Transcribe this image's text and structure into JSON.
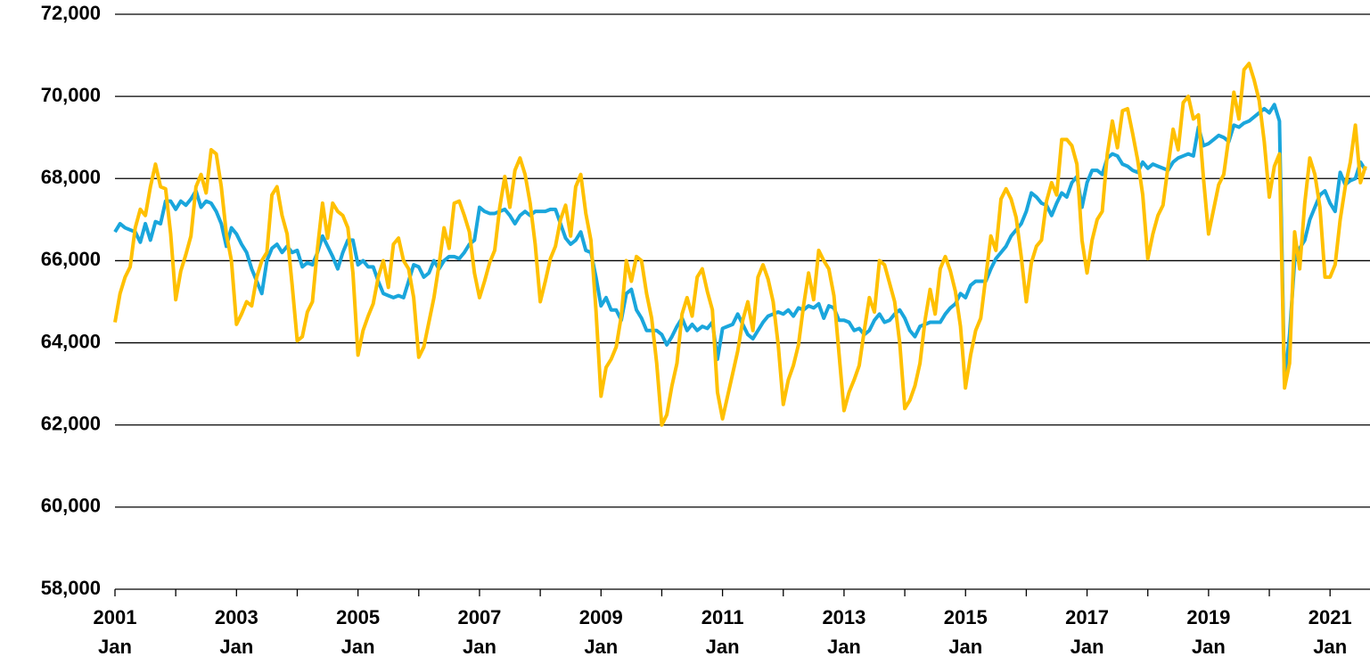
{
  "chart_data": {
    "type": "line",
    "x": [
      "2001-01",
      "2001-02",
      "2001-03",
      "2001-04",
      "2001-05",
      "2001-06",
      "2001-07",
      "2001-08",
      "2001-09",
      "2001-10",
      "2001-11",
      "2001-12",
      "2002-01",
      "2002-02",
      "2002-03",
      "2002-04",
      "2002-05",
      "2002-06",
      "2002-07",
      "2002-08",
      "2002-09",
      "2002-10",
      "2002-11",
      "2002-12",
      "2003-01",
      "2003-02",
      "2003-03",
      "2003-04",
      "2003-05",
      "2003-06",
      "2003-07",
      "2003-08",
      "2003-09",
      "2003-10",
      "2003-11",
      "2003-12",
      "2004-01",
      "2004-02",
      "2004-03",
      "2004-04",
      "2004-05",
      "2004-06",
      "2004-07",
      "2004-08",
      "2004-09",
      "2004-10",
      "2004-11",
      "2004-12",
      "2005-01",
      "2005-02",
      "2005-03",
      "2005-04",
      "2005-05",
      "2005-06",
      "2005-07",
      "2005-08",
      "2005-09",
      "2005-10",
      "2005-11",
      "2005-12",
      "2006-01",
      "2006-02",
      "2006-03",
      "2006-04",
      "2006-05",
      "2006-06",
      "2006-07",
      "2006-08",
      "2006-09",
      "2006-10",
      "2006-11",
      "2006-12",
      "2007-01",
      "2007-02",
      "2007-03",
      "2007-04",
      "2007-05",
      "2007-06",
      "2007-07",
      "2007-08",
      "2007-09",
      "2007-10",
      "2007-11",
      "2007-12",
      "2008-01",
      "2008-02",
      "2008-03",
      "2008-04",
      "2008-05",
      "2008-06",
      "2008-07",
      "2008-08",
      "2008-09",
      "2008-10",
      "2008-11",
      "2008-12",
      "2009-01",
      "2009-02",
      "2009-03",
      "2009-04",
      "2009-05",
      "2009-06",
      "2009-07",
      "2009-08",
      "2009-09",
      "2009-10",
      "2009-11",
      "2009-12",
      "2010-01",
      "2010-02",
      "2010-03",
      "2010-04",
      "2010-05",
      "2010-06",
      "2010-07",
      "2010-08",
      "2010-09",
      "2010-10",
      "2010-11",
      "2010-12",
      "2011-01",
      "2011-02",
      "2011-03",
      "2011-04",
      "2011-05",
      "2011-06",
      "2011-07",
      "2011-08",
      "2011-09",
      "2011-10",
      "2011-11",
      "2011-12",
      "2012-01",
      "2012-02",
      "2012-03",
      "2012-04",
      "2012-05",
      "2012-06",
      "2012-07",
      "2012-08",
      "2012-09",
      "2012-10",
      "2012-11",
      "2012-12",
      "2013-01",
      "2013-02",
      "2013-03",
      "2013-04",
      "2013-05",
      "2013-06",
      "2013-07",
      "2013-08",
      "2013-09",
      "2013-10",
      "2013-11",
      "2013-12",
      "2014-01",
      "2014-02",
      "2014-03",
      "2014-04",
      "2014-05",
      "2014-06",
      "2014-07",
      "2014-08",
      "2014-09",
      "2014-10",
      "2014-11",
      "2014-12",
      "2015-01",
      "2015-02",
      "2015-03",
      "2015-04",
      "2015-05",
      "2015-06",
      "2015-07",
      "2015-08",
      "2015-09",
      "2015-10",
      "2015-11",
      "2015-12",
      "2016-01",
      "2016-02",
      "2016-03",
      "2016-04",
      "2016-05",
      "2016-06",
      "2016-07",
      "2016-08",
      "2016-09",
      "2016-10",
      "2016-11",
      "2016-12",
      "2017-01",
      "2017-02",
      "2017-03",
      "2017-04",
      "2017-05",
      "2017-06",
      "2017-07",
      "2017-08",
      "2017-09",
      "2017-10",
      "2017-11",
      "2017-12",
      "2018-01",
      "2018-02",
      "2018-03",
      "2018-04",
      "2018-05",
      "2018-06",
      "2018-07",
      "2018-08",
      "2018-09",
      "2018-10",
      "2018-11",
      "2018-12",
      "2019-01",
      "2019-02",
      "2019-03",
      "2019-04",
      "2019-05",
      "2019-06",
      "2019-07",
      "2019-08",
      "2019-09",
      "2019-10",
      "2019-11",
      "2019-12",
      "2020-01",
      "2020-02",
      "2020-03",
      "2020-04",
      "2020-05",
      "2020-06",
      "2020-07",
      "2020-08",
      "2020-09",
      "2020-10",
      "2020-11",
      "2020-12",
      "2021-01",
      "2021-02",
      "2021-03",
      "2021-04",
      "2021-05",
      "2021-06",
      "2021-07",
      "2021-08"
    ],
    "series": [
      {
        "color": "#1aa6dc",
        "values": [
          66700,
          66900,
          66800,
          66750,
          66700,
          66450,
          66900,
          66500,
          66950,
          66900,
          67450,
          67450,
          67250,
          67450,
          67350,
          67500,
          67700,
          67300,
          67450,
          67400,
          67200,
          66900,
          66350,
          66800,
          66650,
          66400,
          66200,
          65800,
          65500,
          65200,
          66000,
          66300,
          66400,
          66200,
          66350,
          66200,
          66250,
          65850,
          65950,
          65900,
          66200,
          66600,
          66350,
          66100,
          65800,
          66200,
          66500,
          66500,
          65900,
          66000,
          65850,
          65850,
          65500,
          65200,
          65150,
          65100,
          65150,
          65100,
          65500,
          65900,
          65850,
          65600,
          65700,
          66000,
          65800,
          66000,
          66100,
          66100,
          66050,
          66200,
          66400,
          66500,
          67300,
          67200,
          67150,
          67150,
          67200,
          67250,
          67100,
          66900,
          67100,
          67200,
          67100,
          67200,
          67200,
          67200,
          67250,
          67250,
          66900,
          66550,
          66400,
          66500,
          66700,
          66250,
          66200,
          65600,
          64900,
          65100,
          64800,
          64800,
          64550,
          65200,
          65300,
          64800,
          64600,
          64300,
          64300,
          64300,
          64200,
          63950,
          64150,
          64400,
          64600,
          64300,
          64450,
          64300,
          64400,
          64350,
          64500,
          63600,
          64350,
          64400,
          64450,
          64700,
          64450,
          64200,
          64100,
          64300,
          64500,
          64650,
          64700,
          64750,
          64700,
          64800,
          64650,
          64850,
          64800,
          64900,
          64850,
          64950,
          64600,
          64900,
          64850,
          64550,
          64550,
          64500,
          64300,
          64350,
          64200,
          64300,
          64550,
          64700,
          64500,
          64550,
          64700,
          64800,
          64600,
          64300,
          64150,
          64400,
          64450,
          64500,
          64500,
          64500,
          64700,
          64850,
          64950,
          65200,
          65100,
          65400,
          65500,
          65500,
          65500,
          65800,
          66050,
          66200,
          66350,
          66600,
          66750,
          66900,
          67200,
          67650,
          67550,
          67400,
          67350,
          67100,
          67400,
          67650,
          67550,
          67900,
          68050,
          67300,
          67900,
          68200,
          68200,
          68100,
          68500,
          68600,
          68550,
          68350,
          68300,
          68200,
          68150,
          68400,
          68250,
          68350,
          68300,
          68250,
          68200,
          68400,
          68500,
          68550,
          68600,
          68550,
          69250,
          68800,
          68850,
          68950,
          69050,
          69000,
          68900,
          69300,
          69250,
          69350,
          69400,
          69500,
          69600,
          69700,
          69600,
          69800,
          69400,
          63000,
          64200,
          66000,
          66300,
          66500,
          67000,
          67300,
          67600,
          67700,
          67400,
          67200,
          68150,
          67850,
          67950,
          68000,
          68400,
          68200
        ]
      },
      {
        "color": "#ffc000",
        "values": [
          64500,
          65200,
          65600,
          65850,
          66800,
          67250,
          67100,
          67800,
          68350,
          67800,
          67750,
          66650,
          65050,
          65750,
          66150,
          66600,
          67800,
          68100,
          67650,
          68700,
          68600,
          67800,
          66650,
          66000,
          64450,
          64700,
          65000,
          64900,
          65600,
          66000,
          66200,
          67600,
          67800,
          67100,
          66650,
          65400,
          64050,
          64150,
          64750,
          65000,
          66300,
          67400,
          66550,
          67400,
          67200,
          67100,
          66800,
          65700,
          63700,
          64300,
          64650,
          64950,
          65600,
          66000,
          65350,
          66400,
          66550,
          66000,
          65800,
          65100,
          63650,
          63900,
          64500,
          65100,
          65900,
          66800,
          66300,
          67400,
          67450,
          67100,
          66700,
          65700,
          65100,
          65500,
          65950,
          66250,
          67300,
          68050,
          67300,
          68200,
          68500,
          68100,
          67400,
          66400,
          65000,
          65500,
          66050,
          66350,
          67000,
          67350,
          66600,
          67800,
          68100,
          67150,
          66500,
          64800,
          62700,
          63400,
          63600,
          63900,
          64650,
          66000,
          65500,
          66100,
          66000,
          65200,
          64600,
          63500,
          62000,
          62250,
          62950,
          63500,
          64700,
          65100,
          64650,
          65600,
          65800,
          65250,
          64800,
          62800,
          62150,
          62700,
          63250,
          63800,
          64550,
          65000,
          64300,
          65600,
          65900,
          65550,
          65000,
          63950,
          62500,
          63100,
          63450,
          63950,
          64900,
          65700,
          65050,
          66250,
          66000,
          65800,
          65150,
          63750,
          62350,
          62800,
          63100,
          63450,
          64300,
          65100,
          64750,
          66000,
          65900,
          65450,
          65000,
          64000,
          62400,
          62600,
          62950,
          63500,
          64550,
          65300,
          64700,
          65800,
          66100,
          65750,
          65250,
          64400,
          62900,
          63700,
          64300,
          64600,
          65600,
          66600,
          66250,
          67500,
          67750,
          67500,
          67050,
          66100,
          65000,
          65950,
          66350,
          66500,
          67450,
          67900,
          67600,
          68950,
          68950,
          68800,
          68350,
          66500,
          65700,
          66500,
          67000,
          67200,
          68600,
          69400,
          68750,
          69650,
          69700,
          69100,
          68450,
          67600,
          66050,
          66650,
          67100,
          67350,
          68300,
          69200,
          68700,
          69850,
          70000,
          69450,
          69550,
          68000,
          66650,
          67250,
          67850,
          68100,
          69000,
          70100,
          69450,
          70650,
          70800,
          70400,
          69900,
          68900,
          67550,
          68300,
          68600,
          62900,
          63500,
          66700,
          65800,
          67400,
          68500,
          68100,
          67300,
          65600,
          65600,
          65900,
          67000,
          67800,
          68400,
          69300,
          67900,
          68300
        ]
      }
    ],
    "ylim": [
      58000,
      72000
    ],
    "yticks": [
      {
        "value": 58000,
        "label": "58,000"
      },
      {
        "value": 60000,
        "label": "60,000"
      },
      {
        "value": 62000,
        "label": "62,000"
      },
      {
        "value": 64000,
        "label": "64,000"
      },
      {
        "value": 66000,
        "label": "66,000"
      },
      {
        "value": 68000,
        "label": "68,000"
      },
      {
        "value": 70000,
        "label": "70,000"
      },
      {
        "value": 72000,
        "label": "72,000"
      }
    ],
    "xticks": [
      {
        "value": "2001-01",
        "label": [
          "2001",
          "Jan"
        ]
      },
      {
        "value": "2003-01",
        "label": [
          "2003",
          "Jan"
        ]
      },
      {
        "value": "2005-01",
        "label": [
          "2005",
          "Jan"
        ]
      },
      {
        "value": "2007-01",
        "label": [
          "2007",
          "Jan"
        ]
      },
      {
        "value": "2009-01",
        "label": [
          "2009",
          "Jan"
        ]
      },
      {
        "value": "2011-01",
        "label": [
          "2011",
          "Jan"
        ]
      },
      {
        "value": "2013-01",
        "label": [
          "2013",
          "Jan"
        ]
      },
      {
        "value": "2015-01",
        "label": [
          "2015",
          "Jan"
        ]
      },
      {
        "value": "2017-01",
        "label": [
          "2017",
          "Jan"
        ]
      },
      {
        "value": "2019-01",
        "label": [
          "2019",
          "Jan"
        ]
      },
      {
        "value": "2021-01",
        "label": [
          "2021",
          "Jan"
        ]
      }
    ],
    "grid": true
  }
}
